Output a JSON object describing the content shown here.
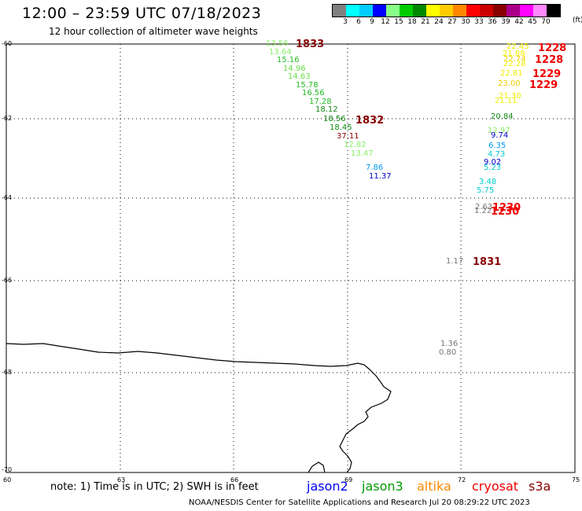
{
  "header": {
    "title": "12:00 – 23:59 UTC 07/18/2023",
    "subtitle": "12 hour collection of altimeter wave heights"
  },
  "colorbar": {
    "unit": "(ft)",
    "colors": [
      "#808080",
      "#00ffff",
      "#00ccff",
      "#0000ff",
      "#88ff88",
      "#00cc00",
      "#008800",
      "#ffff00",
      "#ffcc00",
      "#ff8800",
      "#ff0000",
      "#cc0000",
      "#880000",
      "#aa0088",
      "#ff00ff",
      "#ff88ff",
      "#000000"
    ],
    "ticks": [
      "3",
      "6",
      "9",
      "12",
      "15",
      "18",
      "21",
      "24",
      "27",
      "30",
      "33",
      "36",
      "39",
      "42",
      "45",
      "70"
    ]
  },
  "lat_labels": [
    "-60",
    "-62",
    "-64",
    "-66",
    "-68",
    "-70"
  ],
  "lon_labels": [
    "60",
    "63",
    "66",
    "69",
    "72",
    "75"
  ],
  "wave_heights": [
    {
      "text": "13.56",
      "color": "#88ee66"
    },
    {
      "text": "13.64",
      "color": "#88ee66"
    },
    {
      "text": "15.16",
      "color": "#22bb22"
    },
    {
      "text": "14.96",
      "color": "#66dd44"
    },
    {
      "text": "14.63",
      "color": "#66dd44"
    },
    {
      "text": "15.78",
      "color": "#22bb22"
    },
    {
      "text": "16.56",
      "color": "#22bb22"
    },
    {
      "text": "17.28",
      "color": "#22bb22"
    },
    {
      "text": "18.12",
      "color": "#118811"
    },
    {
      "text": "18.56",
      "color": "#118811"
    },
    {
      "text": "18.45",
      "color": "#118811"
    },
    {
      "text": "37.11",
      "color": "#880000"
    },
    {
      "text": "12.82",
      "color": "#88ee66"
    },
    {
      "text": "13.47",
      "color": "#88ee66"
    },
    {
      "text": "7.86",
      "color": "#0099ee"
    },
    {
      "text": "11.37",
      "color": "#0000cc"
    },
    {
      "text": "22.45",
      "color": "#eeee00"
    },
    {
      "text": "21.88",
      "color": "#eeee00"
    },
    {
      "text": "22.74",
      "color": "#eecc00"
    },
    {
      "text": "22.28",
      "color": "#eeee00"
    },
    {
      "text": "22.81",
      "color": "#eeee00"
    },
    {
      "text": "23.00",
      "color": "#eecc00"
    },
    {
      "text": "21.30",
      "color": "#eeee00"
    },
    {
      "text": "21.11",
      "color": "#eeee00"
    },
    {
      "text": "20.84",
      "color": "#118811"
    },
    {
      "text": "12.97",
      "color": "#88ee66"
    },
    {
      "text": "9.74",
      "color": "#0000cc"
    },
    {
      "text": "6.35",
      "color": "#0099ee"
    },
    {
      "text": "4.73",
      "color": "#00cccc"
    },
    {
      "text": "9.02",
      "color": "#0000cc"
    },
    {
      "text": "5.23",
      "color": "#00cccc"
    },
    {
      "text": "3.48",
      "color": "#00cccc"
    },
    {
      "text": "5.75",
      "color": "#00cccc"
    },
    {
      "text": "2.63",
      "color": "#777777"
    },
    {
      "text": "1.22",
      "color": "#777777"
    },
    {
      "text": "1.17",
      "color": "#777777"
    },
    {
      "text": "1.36",
      "color": "#777777"
    },
    {
      "text": "0.80",
      "color": "#777777"
    }
  ],
  "pass_times": [
    {
      "text": "1833",
      "color": "#880000"
    },
    {
      "text": "1832",
      "color": "#880000"
    },
    {
      "text": "1228",
      "color": "#ee0000"
    },
    {
      "text": "1228",
      "color": "#ee0000"
    },
    {
      "text": "1229",
      "color": "#ee0000"
    },
    {
      "text": "1229",
      "color": "#ee0000"
    },
    {
      "text": "1230",
      "color": "#ee0000"
    },
    {
      "text": "1230",
      "color": "#ee0000"
    },
    {
      "text": "1831",
      "color": "#880000"
    }
  ],
  "note": "note: 1) Time is in UTC; 2) SWH is in feet",
  "satellites": [
    {
      "name": "jason2",
      "color": "#0000ee"
    },
    {
      "name": "jason3",
      "color": "#009900"
    },
    {
      "name": "altika",
      "color": "#ff8800"
    },
    {
      "name": "cryosat",
      "color": "#ee0000"
    },
    {
      "name": "s3a",
      "color": "#880000"
    }
  ],
  "footer": "NOAA/NESDIS Center for Satellite Applications and Research    Jul 20 08:29:22 UTC 2023"
}
